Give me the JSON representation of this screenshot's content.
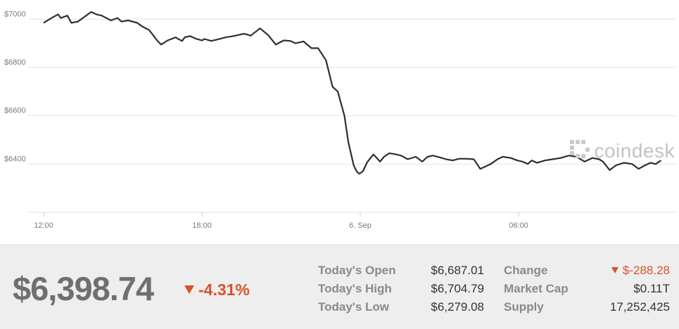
{
  "chart_data": {
    "type": "line",
    "title": "",
    "xlabel": "",
    "ylabel": "",
    "ylim": [
      6200,
      7030
    ],
    "y_ticks": [
      "$7000",
      "$6800",
      "$6600",
      "$6400"
    ],
    "y_tick_values": [
      7000,
      6800,
      6600,
      6400
    ],
    "x_ticks": [
      "12:00",
      "18:00",
      "6. Sep",
      "06:00"
    ],
    "x_tick_hours": [
      0,
      6,
      12,
      18
    ],
    "grid": true,
    "series": [
      {
        "x_hours": [
          0,
          0.3,
          0.55,
          0.65,
          0.9,
          1.05,
          1.3,
          1.55,
          1.8,
          2.0,
          2.2,
          2.55,
          2.8,
          2.95,
          3.2,
          3.55,
          3.7,
          4.0,
          4.3,
          4.45,
          4.7,
          5.0,
          5.1,
          5.25,
          5.35,
          5.55,
          5.75,
          6.0,
          6.1,
          6.35,
          6.6,
          6.9,
          7.2,
          7.6,
          7.85,
          8.2,
          8.5,
          8.8,
          9.1,
          9.35,
          9.55,
          9.85,
          10.15,
          10.4,
          10.7,
          10.95,
          11.15,
          11.4,
          11.55,
          11.75,
          11.85,
          11.9,
          11.97,
          12.1,
          12.25,
          12.35,
          12.5,
          12.75,
          12.9,
          13.1,
          13.35,
          13.55,
          13.8,
          14.1,
          14.35,
          14.55,
          14.75,
          15.0,
          15.25,
          15.5,
          15.75,
          16.0,
          16.3,
          16.55,
          16.75,
          16.95,
          17.2,
          17.4,
          17.7,
          17.95,
          18.15,
          18.35,
          18.5,
          18.7,
          19.0,
          19.3,
          19.6,
          19.9,
          20.2,
          20.5,
          20.8,
          21.05,
          21.2,
          21.45,
          21.7,
          22.0,
          22.3,
          22.55,
          22.8,
          23.0,
          23.2,
          23.4
        ],
        "values": [
          6985,
          7005,
          7020,
          7005,
          7015,
          6985,
          6990,
          7010,
          7030,
          7020,
          7015,
          6995,
          7005,
          6990,
          6995,
          6985,
          6972,
          6955,
          6912,
          6895,
          6912,
          6925,
          6918,
          6910,
          6925,
          6930,
          6920,
          6912,
          6918,
          6910,
          6916,
          6925,
          6930,
          6940,
          6932,
          6962,
          6935,
          6895,
          6912,
          6910,
          6900,
          6908,
          6880,
          6880,
          6830,
          6720,
          6700,
          6600,
          6490,
          6395,
          6372,
          6365,
          6360,
          6370,
          6405,
          6420,
          6440,
          6410,
          6430,
          6445,
          6440,
          6435,
          6420,
          6430,
          6410,
          6430,
          6435,
          6428,
          6420,
          6415,
          6422,
          6422,
          6420,
          6380,
          6390,
          6400,
          6420,
          6430,
          6425,
          6415,
          6410,
          6400,
          6415,
          6405,
          6415,
          6420,
          6425,
          6435,
          6430,
          6410,
          6425,
          6420,
          6410,
          6375,
          6395,
          6405,
          6400,
          6380,
          6395,
          6405,
          6400,
          6415
        ]
      }
    ]
  },
  "watermark": {
    "text": "coindesk",
    "icon": "coindesk-logo-icon"
  },
  "summary": {
    "price": "$6,398.74",
    "percent_change": "-4.31%",
    "direction": "down",
    "accent_color": "#d9522a"
  },
  "stats": {
    "open_label": "Today's Open",
    "open_value": "$6,687.01",
    "high_label": "Today's High",
    "high_value": "$6,704.79",
    "low_label": "Today's Low",
    "low_value": "$6,279.08",
    "change_label": "Change",
    "change_value": "$-288.28",
    "cap_label": "Market Cap",
    "cap_value": "$0.11T",
    "supply_label": "Supply",
    "supply_value": "17,252,425"
  }
}
